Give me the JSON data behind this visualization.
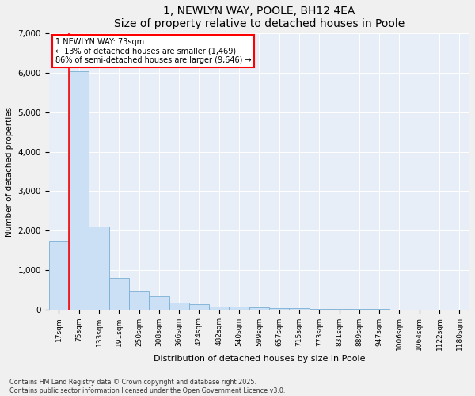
{
  "title": "1, NEWLYN WAY, POOLE, BH12 4EA",
  "subtitle": "Size of property relative to detached houses in Poole",
  "xlabel": "Distribution of detached houses by size in Poole",
  "ylabel": "Number of detached properties",
  "bar_color": "#cce0f5",
  "bar_edge_color": "#7aafd4",
  "background_color": "#e8eef8",
  "fig_background": "#f0f0f0",
  "categories": [
    "17sqm",
    "75sqm",
    "133sqm",
    "191sqm",
    "250sqm",
    "308sqm",
    "366sqm",
    "424sqm",
    "482sqm",
    "540sqm",
    "599sqm",
    "657sqm",
    "715sqm",
    "773sqm",
    "831sqm",
    "889sqm",
    "947sqm",
    "1006sqm",
    "1064sqm",
    "1122sqm",
    "1180sqm"
  ],
  "values": [
    1750,
    6050,
    2100,
    800,
    450,
    340,
    170,
    130,
    80,
    65,
    50,
    35,
    25,
    15,
    10,
    7,
    5,
    3,
    2,
    2,
    1
  ],
  "property_label": "1 NEWLYN WAY: 73sqm",
  "pct_smaller": 13,
  "pct_smaller_count": 1469,
  "pct_larger_semi": 86,
  "pct_larger_semi_count": 9646,
  "ylim": [
    0,
    7000
  ],
  "yticks": [
    0,
    1000,
    2000,
    3000,
    4000,
    5000,
    6000,
    7000
  ],
  "red_line_x": 0.5,
  "footer_line1": "Contains HM Land Registry data © Crown copyright and database right 2025.",
  "footer_line2": "Contains public sector information licensed under the Open Government Licence v3.0."
}
